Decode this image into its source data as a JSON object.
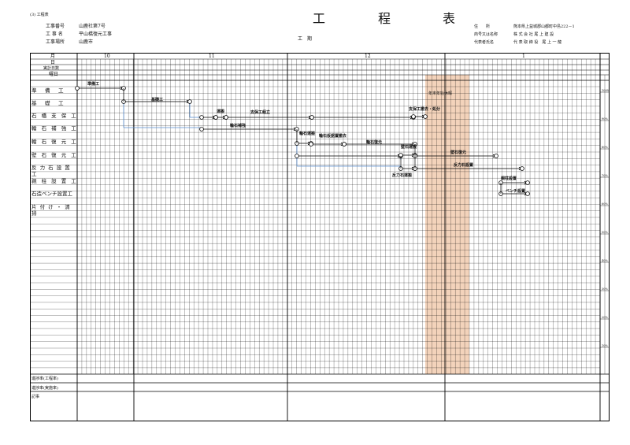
{
  "header": {
    "section": "(3) 工程表",
    "title_chars": [
      "工",
      "程",
      "表"
    ],
    "info_left": [
      {
        "label": "工事番号",
        "value": "山鹿社第7号"
      },
      {
        "label": "工 事 名",
        "value": "平山橋復元工事"
      },
      {
        "label": "工事場所",
        "value": "山鹿市"
      }
    ],
    "period_label": "工　期",
    "info_right": [
      {
        "label": "住　　所",
        "value": "熊本県上益城郡山都町中島222－1"
      },
      {
        "label": "商号又は名称",
        "value": "株 式 会 社 尾 上 建 設"
      },
      {
        "label": "代表者氏名",
        "value": "代 表 取 締 役　尾 上 一 龍"
      }
    ]
  },
  "table": {
    "row_headers": [
      "月",
      "日",
      "実計日数",
      "曜日"
    ],
    "months": [
      "10",
      "11",
      "12",
      "1"
    ],
    "holiday_label": "年末年始休暇",
    "tasks": [
      "準　備　工",
      "基　礎　工",
      "石 橋 支 保 工",
      "輪 石 補 強 工",
      "輪 石 復 元 工",
      "壁 石 復 元 工",
      "反 力 石 設 置 工",
      "親 柱 設 置 工",
      "石造ベンチ設置工",
      "片 付 け ・ 清 掃"
    ],
    "bars": [
      "準備工",
      "基礎工",
      "運搬",
      "支保工組立",
      "支保工撤去・処分",
      "輪石補強",
      "輪石運搬",
      "輪石仮据置撤去",
      "輪石復元",
      "壁石運搬",
      "壁石復元",
      "反力石設置",
      "反力石運搬",
      "親柱設置",
      "ベンチ設置"
    ],
    "footer_rows": [
      "進捗率(工程率)",
      "進捗率(実施率)",
      "記事"
    ],
    "right_scale": [
      "100%",
      "90%",
      "80%",
      "70%",
      "60%",
      "50%",
      "40%",
      "30%",
      "20%",
      "10%"
    ]
  },
  "colors": {
    "holiday": "#f3d3bb",
    "line": "#000000",
    "link": "#5a8fd0"
  }
}
